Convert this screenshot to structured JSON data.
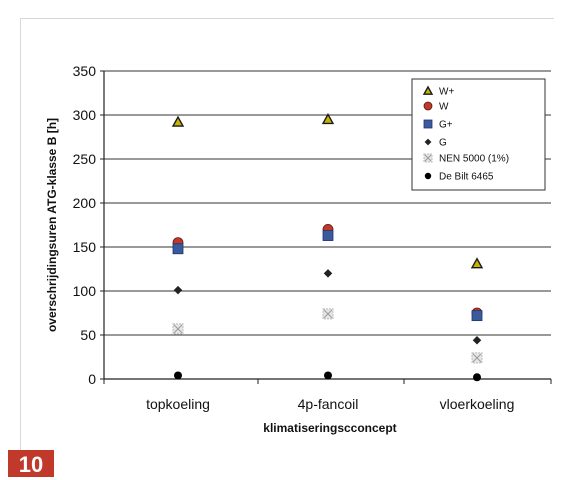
{
  "page_number": "10",
  "chart_data": {
    "type": "scatter",
    "title": "",
    "xlabel": "klimatiseringscconcept",
    "ylabel": "overschrijdingsuren ATG-klasse B [h]",
    "ylim": [
      0,
      350
    ],
    "yticks": [
      0,
      50,
      100,
      150,
      200,
      250,
      300,
      350
    ],
    "grid": true,
    "legend_position": "top-right",
    "categories": [
      "topkoeling",
      "4p-fancoil",
      "vloerkoeling"
    ],
    "series": [
      {
        "name": "W+",
        "marker": "triangle",
        "color": "#c8b400",
        "values": [
          292,
          295,
          131
        ]
      },
      {
        "name": "W",
        "marker": "circle",
        "color": "#c0392b",
        "values": [
          155,
          170,
          75
        ]
      },
      {
        "name": "G+",
        "marker": "square",
        "color": "#3a5a9c",
        "values": [
          148,
          163,
          72
        ]
      },
      {
        "name": "G",
        "marker": "diamond",
        "color": "#222222",
        "values": [
          101,
          120,
          44
        ]
      },
      {
        "name": "NEN 5000 (1%)",
        "marker": "hatched-square",
        "color": "#bbbbbb",
        "values": [
          57,
          74,
          24
        ]
      },
      {
        "name": "De Bilt 6465",
        "marker": "dot",
        "color": "#000000",
        "values": [
          4,
          4,
          2
        ]
      }
    ]
  }
}
